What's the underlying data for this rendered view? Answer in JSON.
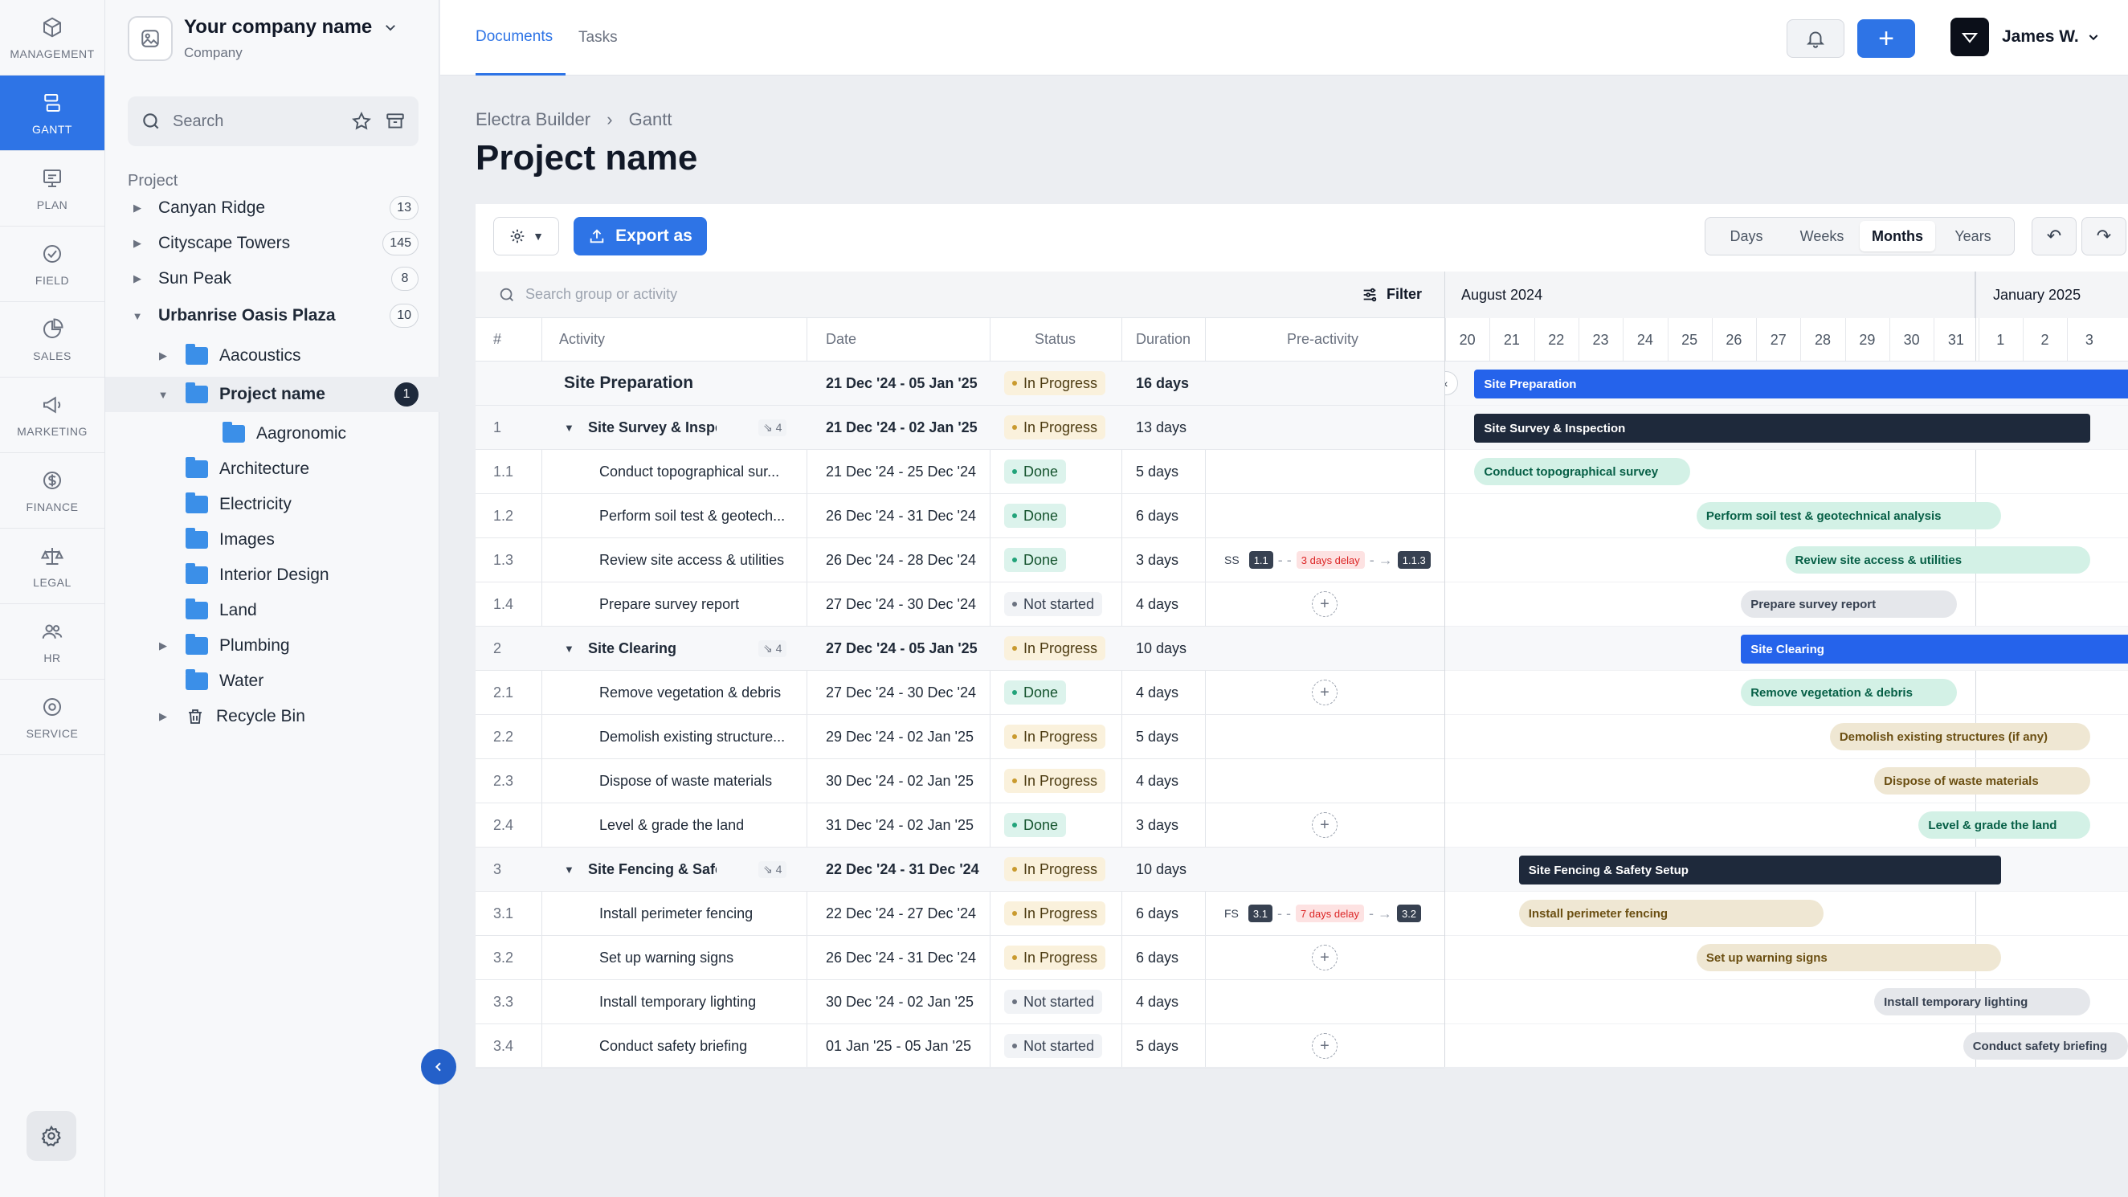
{
  "rail": [
    {
      "label": "MANAGEMENT",
      "icon": "cube-icon"
    },
    {
      "label": "GANTT",
      "icon": "gantt-icon",
      "active": true
    },
    {
      "label": "PLAN",
      "icon": "plan-icon"
    },
    {
      "label": "FIELD",
      "icon": "check-circle-icon"
    },
    {
      "label": "SALES",
      "icon": "pie-icon"
    },
    {
      "label": "MARKETING",
      "icon": "megaphone-icon"
    },
    {
      "label": "FINANCE",
      "icon": "dollar-icon"
    },
    {
      "label": "LEGAL",
      "icon": "scales-icon"
    },
    {
      "label": "HR",
      "icon": "people-icon"
    },
    {
      "label": "SERVICE",
      "icon": "gear-icon"
    }
  ],
  "company": {
    "name": "Your company name",
    "sub": "Company"
  },
  "sidebar": {
    "search_placeholder": "Search",
    "section_label": "Project",
    "items": [
      {
        "label": "Canyan Ridge",
        "count": "13",
        "indent": 0,
        "arrow": "▶"
      },
      {
        "label": "Cityscape Towers",
        "count": "145",
        "indent": 0,
        "arrow": "▶"
      },
      {
        "label": "Sun Peak",
        "count": "8",
        "indent": 0,
        "arrow": "▶"
      },
      {
        "label": "Urbanrise Oasis Plaza",
        "count": "10",
        "indent": 0,
        "arrow": "▼",
        "bold": true
      },
      {
        "label": "Aacoustics",
        "indent": 1,
        "arrow": "▶",
        "folder": true
      },
      {
        "label": "Project name",
        "count": "1",
        "indent": 1,
        "arrow": "▼",
        "folder": true,
        "selected": true,
        "dark": true
      },
      {
        "label": "Aagronomic",
        "indent": 2,
        "folder": true
      },
      {
        "label": "Architecture",
        "indent": 1,
        "folder": true
      },
      {
        "label": "Electricity",
        "indent": 1,
        "folder": true
      },
      {
        "label": "Images",
        "indent": 1,
        "folder": true
      },
      {
        "label": "Interior Design",
        "indent": 1,
        "folder": true
      },
      {
        "label": "Land",
        "indent": 1,
        "folder": true
      },
      {
        "label": "Plumbing",
        "indent": 1,
        "arrow": "▶",
        "folder": true
      },
      {
        "label": "Water",
        "indent": 1,
        "folder": true
      },
      {
        "label": "Recycle Bin",
        "indent": 1,
        "arrow": "▶",
        "trash": true
      }
    ]
  },
  "topbar": {
    "tabs": [
      "Documents",
      "Tasks"
    ],
    "user": "James W."
  },
  "breadcrumb": {
    "parent": "Electra Builder",
    "current": "Gantt"
  },
  "page_title": "Project name",
  "toolbar": {
    "export_label": "Export as",
    "views": [
      "Days",
      "Weeks",
      "Months",
      "Years"
    ],
    "active_view": "Months"
  },
  "table": {
    "search_placeholder": "Search group or activity",
    "filter_label": "Filter",
    "columns": [
      "#",
      "Activity",
      "Date",
      "Status",
      "Duration",
      "Pre-activity"
    ],
    "rows": [
      {
        "num": "",
        "activity": "Site Preparation",
        "date": "21 Dec '24 - 05 Jan '25",
        "status": "In Progress",
        "duration": "16 days",
        "level": 0
      },
      {
        "num": "1",
        "activity": "Site Survey & Inspec...",
        "date": "21 Dec '24 - 02 Jan '25",
        "status": "In Progress",
        "duration": "13 days",
        "level": 1,
        "sub": "4"
      },
      {
        "num": "1.1",
        "activity": "Conduct topographical sur...",
        "date": "21 Dec '24 - 25 Dec '24",
        "status": "Done",
        "duration": "5 days",
        "level": 2
      },
      {
        "num": "1.2",
        "activity": "Perform soil test & geotech...",
        "date": "26 Dec '24 - 31 Dec '24",
        "status": "Done",
        "duration": "6 days",
        "level": 2
      },
      {
        "num": "1.3",
        "activity": "Review site access & utilities",
        "date": "26 Dec '24 - 28 Dec '24",
        "status": "Done",
        "duration": "3 days",
        "level": 2,
        "pre": {
          "type": "SS",
          "from": "1.1",
          "delay": "3 days delay",
          "to": "1.1.3"
        }
      },
      {
        "num": "1.4",
        "activity": "Prepare survey report",
        "date": "27 Dec '24 - 30 Dec '24",
        "status": "Not started",
        "duration": "4 days",
        "level": 2,
        "add": true
      },
      {
        "num": "2",
        "activity": "Site Clearing",
        "date": "27 Dec '24 - 05 Jan '25",
        "status": "In Progress",
        "duration": "10 days",
        "level": 1,
        "sub": "4"
      },
      {
        "num": "2.1",
        "activity": "Remove vegetation & debris",
        "date": "27 Dec '24 - 30 Dec '24",
        "status": "Done",
        "duration": "4 days",
        "level": 2,
        "add": true
      },
      {
        "num": "2.2",
        "activity": "Demolish existing structure...",
        "date": "29 Dec '24 - 02 Jan '25",
        "status": "In Progress",
        "duration": "5 days",
        "level": 2
      },
      {
        "num": "2.3",
        "activity": "Dispose of waste materials",
        "date": "30 Dec '24 - 02 Jan '25",
        "status": "In Progress",
        "duration": "4 days",
        "level": 2
      },
      {
        "num": "2.4",
        "activity": "Level & grade the land",
        "date": "31 Dec '24 - 02 Jan '25",
        "status": "Done",
        "duration": "3 days",
        "level": 2,
        "add": true
      },
      {
        "num": "3",
        "activity": "Site Fencing & Safet...",
        "date": "22 Dec '24 - 31 Dec '24",
        "status": "In Progress",
        "duration": "10 days",
        "level": 1,
        "sub": "4"
      },
      {
        "num": "3.1",
        "activity": "Install perimeter fencing",
        "date": "22 Dec '24 - 27 Dec '24",
        "status": "In Progress",
        "duration": "6 days",
        "level": 2,
        "pre": {
          "type": "FS",
          "from": "3.1",
          "delay": "7 days delay",
          "to": "3.2"
        }
      },
      {
        "num": "3.2",
        "activity": "Set up warning signs",
        "date": "26 Dec '24 - 31 Dec '24",
        "status": "In Progress",
        "duration": "6 days",
        "level": 2,
        "add": true
      },
      {
        "num": "3.3",
        "activity": "Install temporary lighting",
        "date": "30 Dec '24 - 02 Jan '25",
        "status": "Not started",
        "duration": "4 days",
        "level": 2
      },
      {
        "num": "3.4",
        "activity": "Conduct safety briefing",
        "date": "01 Jan '25 - 05 Jan '25",
        "status": "Not started",
        "duration": "5 days",
        "level": 2,
        "add": true
      }
    ]
  },
  "gantt": {
    "months": [
      "August 2024",
      "January 2025"
    ],
    "days": [
      "20",
      "21",
      "22",
      "23",
      "24",
      "25",
      "26",
      "27",
      "28",
      "29",
      "30",
      "31",
      "1",
      "2",
      "3"
    ],
    "bars": [
      {
        "label": "Site Preparation",
        "start": 1,
        "end": 16,
        "style": "blue"
      },
      {
        "label": "Site Survey & Inspection",
        "start": 1,
        "end": 14,
        "style": "navy"
      },
      {
        "label": "Conduct topographical survey",
        "start": 1,
        "end": 5,
        "style": "green"
      },
      {
        "label": "Perform soil test & geotechnical analysis",
        "start": 6,
        "end": 12,
        "style": "green"
      },
      {
        "label": "Review site access & utilities",
        "start": 8,
        "end": 14,
        "style": "green"
      },
      {
        "label": "Prepare survey report",
        "start": 7,
        "end": 11,
        "style": "gray"
      },
      {
        "label": "Site Clearing",
        "start": 7,
        "end": 16,
        "style": "blue"
      },
      {
        "label": "Remove vegetation & debris",
        "start": 7,
        "end": 11,
        "style": "green"
      },
      {
        "label": "Demolish existing structures (if any)",
        "start": 9,
        "end": 14,
        "style": "tan"
      },
      {
        "label": "Dispose of waste materials",
        "start": 10,
        "end": 14,
        "style": "tan"
      },
      {
        "label": "Level & grade the land",
        "start": 11,
        "end": 14,
        "style": "green"
      },
      {
        "label": "Site Fencing & Safety Setup",
        "start": 2,
        "end": 12,
        "style": "navy"
      },
      {
        "label": "Install perimeter fencing",
        "start": 2,
        "end": 8,
        "style": "tan"
      },
      {
        "label": "Set up warning signs",
        "start": 6,
        "end": 12,
        "style": "tan"
      },
      {
        "label": "Install temporary lighting",
        "start": 10,
        "end": 14,
        "style": "gray"
      },
      {
        "label": "Conduct safety briefing",
        "start": 12,
        "end": 16,
        "style": "gray"
      }
    ]
  }
}
